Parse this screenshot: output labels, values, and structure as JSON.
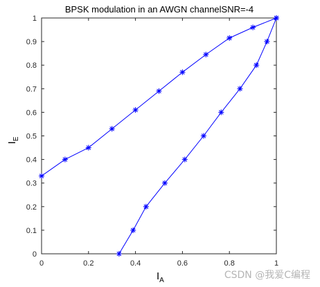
{
  "chart_data": {
    "type": "line",
    "title": "BPSK modulation in an AWGN channelSNR=-4",
    "xlabel": {
      "main": "I",
      "sub": "A"
    },
    "ylabel": {
      "main": "I",
      "sub": "E"
    },
    "xlim": [
      0,
      1
    ],
    "ylim": [
      0,
      1
    ],
    "xticks": [
      "0",
      "0.2",
      "0.4",
      "0.6",
      "0.8",
      "1"
    ],
    "xtick_values": [
      0,
      0.2,
      0.4,
      0.6,
      0.8,
      1
    ],
    "yticks": [
      "0",
      "0.1",
      "0.2",
      "0.3",
      "0.4",
      "0.5",
      "0.6",
      "0.7",
      "0.8",
      "0.9",
      "1"
    ],
    "ytick_values": [
      0,
      0.1,
      0.2,
      0.3,
      0.4,
      0.5,
      0.6,
      0.7,
      0.8,
      0.9,
      1
    ],
    "grid": false,
    "marker": "*",
    "color": "#0000ff",
    "series": [
      {
        "x": [
          0,
          0.1,
          0.2,
          0.3,
          0.4,
          0.5,
          0.6,
          0.7,
          0.8,
          0.9,
          1.0
        ],
        "y": [
          0.33,
          0.4,
          0.45,
          0.53,
          0.61,
          0.69,
          0.77,
          0.845,
          0.915,
          0.96,
          1.0
        ]
      },
      {
        "x": [
          0.33,
          0.39,
          0.445,
          0.525,
          0.61,
          0.69,
          0.765,
          0.845,
          0.915,
          0.96,
          1.0
        ],
        "y": [
          0.0,
          0.1,
          0.2,
          0.3,
          0.4,
          0.5,
          0.6,
          0.7,
          0.8,
          0.9,
          1.0
        ]
      }
    ]
  },
  "watermark": "CSDN @我爱C编程"
}
